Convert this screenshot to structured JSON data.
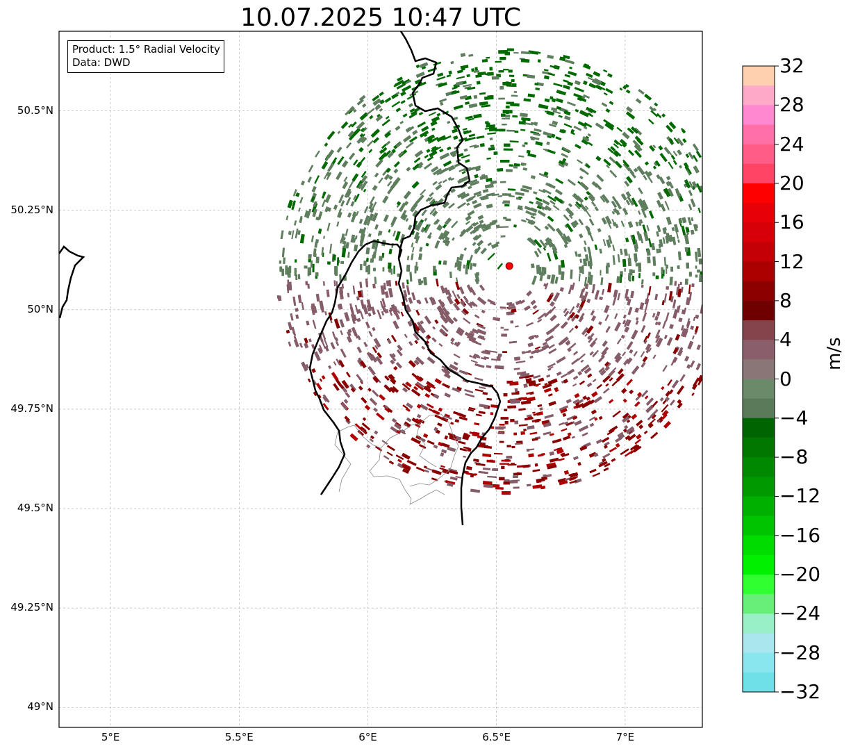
{
  "title": "10.07.2025 10:47 UTC",
  "info": {
    "product": "Product: 1.5° Radial Velocity",
    "source": "Data: DWD"
  },
  "map": {
    "lon_range": [
      4.8,
      7.3
    ],
    "lat_range": [
      48.95,
      50.7
    ],
    "lon_ticks": [
      {
        "v": 5.0,
        "label": "5°E"
      },
      {
        "v": 5.5,
        "label": "5.5°E"
      },
      {
        "v": 6.0,
        "label": "6°E"
      },
      {
        "v": 6.5,
        "label": "6.5°E"
      },
      {
        "v": 7.0,
        "label": "7°E"
      }
    ],
    "lat_ticks": [
      {
        "v": 50.5,
        "label": "50.5°N"
      },
      {
        "v": 50.25,
        "label": "50.25°N"
      },
      {
        "v": 50.0,
        "label": "50°N"
      },
      {
        "v": 49.75,
        "label": "49.75°N"
      },
      {
        "v": 49.5,
        "label": "49.5°N"
      },
      {
        "v": 49.25,
        "label": "49.25°N"
      },
      {
        "v": 49.0,
        "label": "49°N"
      }
    ],
    "grid": true,
    "radar_site": {
      "lon": 6.55,
      "lat": 50.11,
      "color": "#ff0000"
    }
  },
  "colorbar": {
    "unit": "m/s",
    "range": [
      -32,
      32
    ],
    "ticks": [
      "32",
      "28",
      "24",
      "20",
      "16",
      "12",
      "8",
      "4",
      "0",
      "−4",
      "−8",
      "−12",
      "−16",
      "−20",
      "−24",
      "−28",
      "−32"
    ],
    "colors_top_to_bottom": [
      "#ffd0b0",
      "#ffaac8",
      "#ff88d0",
      "#ff70a8",
      "#ff5c88",
      "#ff4466",
      "#ff0000",
      "#e80008",
      "#d80008",
      "#c40006",
      "#aa0000",
      "#8c0000",
      "#6e0000",
      "#84444c",
      "#8a5e6a",
      "#8a7676",
      "#6a8a6a",
      "#5a7a5a",
      "#006400",
      "#007800",
      "#008800",
      "#009a00",
      "#00b000",
      "#00c400",
      "#00dc00",
      "#00f000",
      "#30ff30",
      "#66f07a",
      "#99f0c6",
      "#aae6ee",
      "#8ae6ee",
      "#70e0e8"
    ]
  },
  "echo_colors": {
    "strong_inbound": "#006a00",
    "weak_inbound": "#5e7e5e",
    "weak_outbound": "#865c68",
    "strong_outbound": "#8a0000",
    "very_strong_outbound": "#b00000"
  }
}
